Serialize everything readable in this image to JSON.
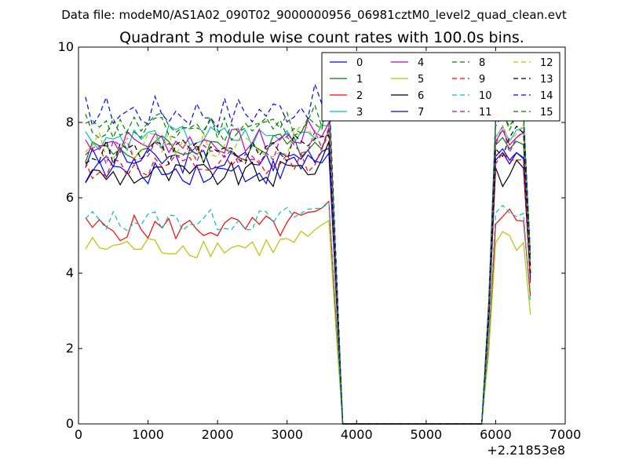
{
  "header": {
    "data_file": "Data file: modeM0/AS1A02_090T02_9000000956_06981cztM0_level2_quad_clean.evt"
  },
  "chart_data": {
    "type": "line",
    "title": "Quadrant 3 module wise count rates with 100.0s bins.",
    "xlabel": "",
    "ylabel": "",
    "xlim": [
      0,
      7000
    ],
    "ylim": [
      0,
      10
    ],
    "x_offset_label": "+2.21853e8",
    "x_ticks": [
      "0",
      "1000",
      "2000",
      "3000",
      "4000",
      "5000",
      "6000",
      "7000"
    ],
    "y_ticks": [
      "0",
      "2",
      "4",
      "6",
      "8",
      "10"
    ],
    "grid": false,
    "legend_position": "top-right",
    "legend_columns": 4,
    "segment1_x": [
      100,
      200,
      300,
      400,
      500,
      600,
      700,
      800,
      900,
      1000,
      1100,
      1200,
      1300,
      1400,
      1500,
      1600,
      1700,
      1800,
      1900,
      2000,
      2100,
      2200,
      2300,
      2400,
      2500,
      2600,
      2700,
      2800,
      2900,
      3000,
      3100,
      3200,
      3300,
      3400,
      3500,
      3600,
      3700,
      3800
    ],
    "segment2_x": [
      3800,
      5800,
      5900,
      6000,
      6100,
      6200,
      6300,
      6400,
      6500
    ],
    "series": [
      {
        "name": "0",
        "color": "#0000ff",
        "dash": "solid",
        "base": 7.0,
        "tail": [
          7.1,
          7.3,
          7.0,
          7.2,
          4.0
        ],
        "amp": 0.35
      },
      {
        "name": "1",
        "color": "#008000",
        "dash": "solid",
        "base": 7.3,
        "tail": [
          7.4,
          7.6,
          7.3,
          7.5,
          4.2
        ],
        "amp": 0.4
      },
      {
        "name": "2",
        "color": "#ff0000",
        "dash": "solid",
        "base": 5.2,
        "tail": [
          5.3,
          5.5,
          5.7,
          5.4,
          3.4
        ],
        "amp": 0.35
      },
      {
        "name": "3",
        "color": "#00bfbf",
        "dash": "solid",
        "base": 7.6,
        "tail": [
          7.6,
          7.9,
          7.5,
          7.8,
          4.3
        ],
        "amp": 0.35
      },
      {
        "name": "4",
        "color": "#bf00bf",
        "dash": "solid",
        "base": 7.5,
        "tail": [
          7.5,
          7.8,
          7.4,
          7.6,
          4.1
        ],
        "amp": 0.35
      },
      {
        "name": "5",
        "color": "#bfbf00",
        "dash": "solid",
        "base": 4.7,
        "tail": [
          4.8,
          5.1,
          5.0,
          4.6,
          2.9
        ],
        "amp": 0.3
      },
      {
        "name": "6",
        "color": "#000000",
        "dash": "solid",
        "base": 6.6,
        "tail": [
          6.8,
          6.3,
          6.6,
          7.0,
          3.8
        ],
        "amp": 0.35
      },
      {
        "name": "7",
        "color": "#0000ff",
        "dash": "solid",
        "base": 6.7,
        "tail": [
          7.0,
          7.2,
          6.9,
          7.2,
          3.9
        ],
        "amp": 0.35
      },
      {
        "name": "8",
        "color": "#008000",
        "dash": "dashed",
        "base": 7.9,
        "tail": [
          8.1,
          8.3,
          7.8,
          8.2,
          4.4
        ],
        "amp": 0.4
      },
      {
        "name": "9",
        "color": "#ff0000",
        "dash": "dashed",
        "base": 6.8,
        "tail": [
          6.9,
          7.2,
          7.0,
          7.0,
          3.7
        ],
        "amp": 0.35
      },
      {
        "name": "10",
        "color": "#00bfbf",
        "dash": "dashed",
        "base": 5.4,
        "tail": [
          5.6,
          5.8,
          5.6,
          5.5,
          3.2
        ],
        "amp": 0.3
      },
      {
        "name": "11",
        "color": "#bf00bf",
        "dash": "dashed",
        "base": 7.2,
        "tail": [
          7.4,
          7.9,
          7.2,
          7.6,
          4.0
        ],
        "amp": 0.35
      },
      {
        "name": "12",
        "color": "#bfbf00",
        "dash": "dashed",
        "base": 7.4,
        "tail": [
          7.6,
          7.9,
          7.5,
          7.7,
          4.1
        ],
        "amp": 0.35
      },
      {
        "name": "13",
        "color": "#000000",
        "dash": "dashed",
        "base": 7.2,
        "tail": [
          7.3,
          7.1,
          7.6,
          7.9,
          4.0
        ],
        "amp": 0.35
      },
      {
        "name": "14",
        "color": "#0000ff",
        "dash": "dashed",
        "base": 8.3,
        "tail": [
          8.1,
          8.6,
          8.3,
          8.4,
          4.5
        ],
        "amp": 0.45
      },
      {
        "name": "15",
        "color": "#008000",
        "dash": "dashed",
        "base": 7.8,
        "tail": [
          7.9,
          8.2,
          7.9,
          8.2,
          4.3
        ],
        "amp": 0.35
      }
    ]
  }
}
